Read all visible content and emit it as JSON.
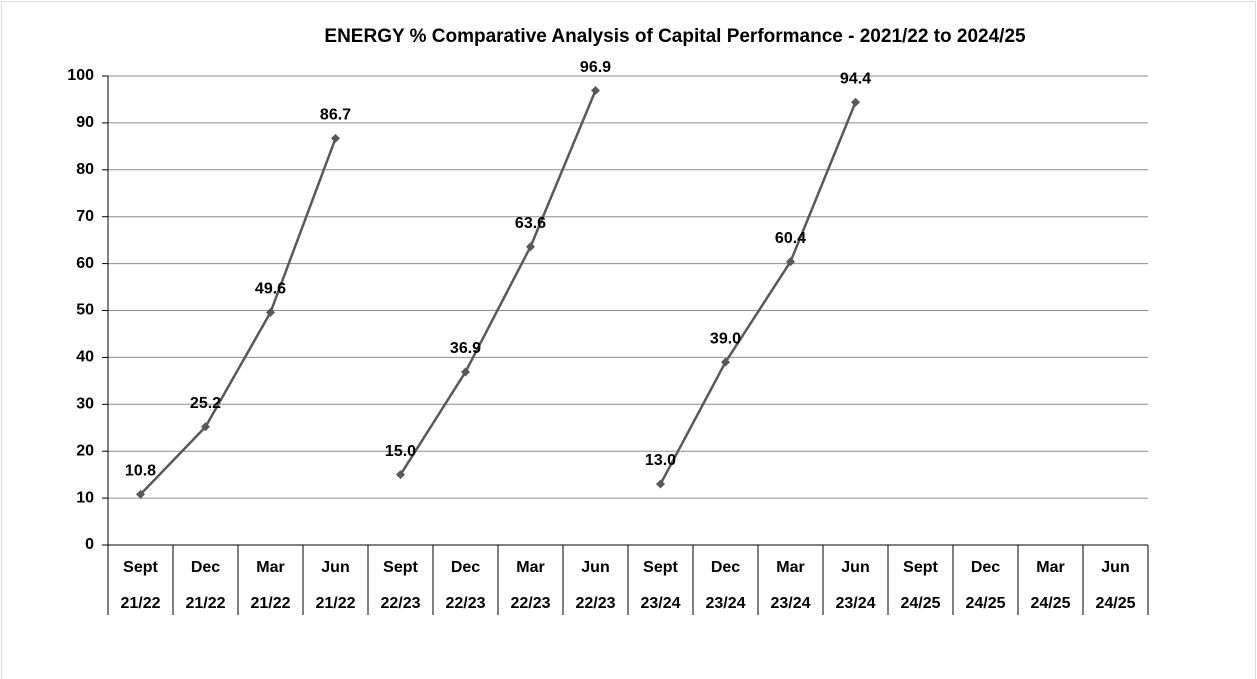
{
  "chart_data": {
    "type": "line",
    "title": "ENERGY %  Comparative Analysis of Capital Performance - 2021/22 to 2024/25",
    "categories": [
      [
        "Sept",
        "21/22"
      ],
      [
        "Dec",
        "21/22"
      ],
      [
        "Mar",
        "21/22"
      ],
      [
        "Jun",
        "21/22"
      ],
      [
        "Sept",
        "22/23"
      ],
      [
        "Dec",
        "22/23"
      ],
      [
        "Mar",
        "22/23"
      ],
      [
        "Jun",
        "22/23"
      ],
      [
        "Sept",
        "23/24"
      ],
      [
        "Dec",
        "23/24"
      ],
      [
        "Mar",
        "23/24"
      ],
      [
        "Jun",
        "23/24"
      ],
      [
        "Sept",
        "24/25"
      ],
      [
        "Dec",
        "24/25"
      ],
      [
        "Mar",
        "24/25"
      ],
      [
        "Jun",
        "24/25"
      ]
    ],
    "series": [
      {
        "color": "#595959",
        "values": [
          10.8,
          25.2,
          49.6,
          86.7,
          null,
          null,
          null,
          null,
          null,
          null,
          null,
          null,
          null,
          null,
          null,
          null
        ],
        "value_labels": [
          "10.8",
          "25.2",
          "49.6",
          "86.7",
          null,
          null,
          null,
          null,
          null,
          null,
          null,
          null,
          null,
          null,
          null,
          null
        ]
      },
      {
        "color": "#595959",
        "values": [
          null,
          null,
          null,
          null,
          15.0,
          36.9,
          63.6,
          96.9,
          null,
          null,
          null,
          null,
          null,
          null,
          null,
          null
        ],
        "value_labels": [
          null,
          null,
          null,
          null,
          "15.0",
          "36.9",
          "63.6",
          "96.9",
          null,
          null,
          null,
          null,
          null,
          null,
          null,
          null
        ]
      },
      {
        "color": "#595959",
        "values": [
          null,
          null,
          null,
          null,
          null,
          null,
          null,
          null,
          13.0,
          39.0,
          60.4,
          94.4,
          null,
          null,
          null,
          null
        ],
        "value_labels": [
          null,
          null,
          null,
          null,
          null,
          null,
          null,
          null,
          "13.0",
          "39.0",
          "60.4",
          "94.4",
          null,
          null,
          null,
          null
        ]
      }
    ],
    "ylim": [
      0,
      100
    ],
    "yticks": [
      0,
      10,
      20,
      30,
      40,
      50,
      60,
      70,
      80,
      90,
      100
    ],
    "grid": true
  }
}
